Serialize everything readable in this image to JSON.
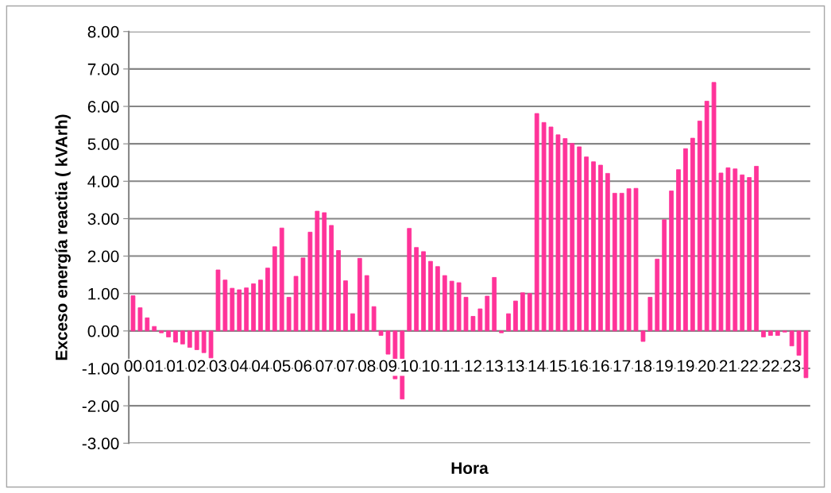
{
  "chart_data": {
    "type": "bar",
    "xlabel": "Hora",
    "ylabel": "Exceso energía reactia ( kVArh)",
    "categories": [
      "00",
      null,
      null,
      "01",
      null,
      null,
      "01",
      null,
      null,
      "02",
      null,
      null,
      "03",
      null,
      null,
      "04",
      null,
      null,
      "04",
      null,
      null,
      "05",
      null,
      null,
      "06",
      null,
      null,
      "07",
      null,
      null,
      "07",
      null,
      null,
      "08",
      null,
      null,
      "09",
      null,
      null,
      "10",
      null,
      null,
      "10",
      null,
      null,
      "11",
      null,
      null,
      "12",
      null,
      null,
      "13",
      null,
      null,
      "13",
      null,
      null,
      "14",
      null,
      null,
      "15",
      null,
      null,
      "16",
      null,
      null,
      "16",
      null,
      null,
      "17",
      null,
      null,
      "18",
      null,
      null,
      "19",
      null,
      null,
      "19",
      null,
      null,
      "20",
      null,
      null,
      "21",
      null,
      null,
      "22",
      null,
      null,
      "22",
      null,
      null,
      "23",
      null,
      null
    ],
    "series": [
      {
        "color": "#ff3399",
        "values": [
          0.94,
          0.62,
          0.35,
          0.12,
          -0.05,
          -0.16,
          -0.3,
          -0.35,
          -0.44,
          -0.5,
          -0.58,
          -0.72,
          1.63,
          1.36,
          1.14,
          1.1,
          1.15,
          1.26,
          1.36,
          1.68,
          2.25,
          2.75,
          0.9,
          1.46,
          1.95,
          2.64,
          3.2,
          3.16,
          2.82,
          2.15,
          1.34,
          0.46,
          1.94,
          1.48,
          0.65,
          -0.12,
          -0.62,
          -1.28,
          -1.82,
          2.74,
          2.23,
          2.12,
          1.86,
          1.72,
          1.48,
          1.33,
          1.29,
          0.9,
          0.39,
          0.59,
          0.93,
          1.43,
          -0.05,
          0.46,
          0.8,
          1.02,
          1.0,
          5.81,
          5.57,
          5.45,
          5.24,
          5.14,
          5.01,
          4.92,
          4.65,
          4.52,
          4.43,
          4.21,
          3.68,
          3.68,
          3.8,
          3.81,
          -0.28,
          0.9,
          1.92,
          2.97,
          3.74,
          4.31,
          4.87,
          5.15,
          5.61,
          6.14,
          6.64,
          4.22,
          4.36,
          4.33,
          4.17,
          4.1,
          4.4,
          -0.16,
          -0.12,
          -0.12,
          -0.03,
          -0.4,
          -0.65,
          -1.25
        ]
      }
    ],
    "ylim": [
      -3,
      8
    ],
    "yticks": [
      {
        "value": -3,
        "label": "-3.00"
      },
      {
        "value": -2,
        "label": "-2.00"
      },
      {
        "value": -1,
        "label": "-1.00"
      },
      {
        "value": 0,
        "label": "0.00"
      },
      {
        "value": 1,
        "label": "1.00"
      },
      {
        "value": 2,
        "label": "2.00"
      },
      {
        "value": 3,
        "label": "3.00"
      },
      {
        "value": 4,
        "label": "4.00"
      },
      {
        "value": 5,
        "label": "5.00"
      },
      {
        "value": 6,
        "label": "6.00"
      },
      {
        "value": 7,
        "label": "7.00"
      },
      {
        "value": 8,
        "label": "8.00"
      }
    ],
    "grid": "y",
    "legend": false
  }
}
